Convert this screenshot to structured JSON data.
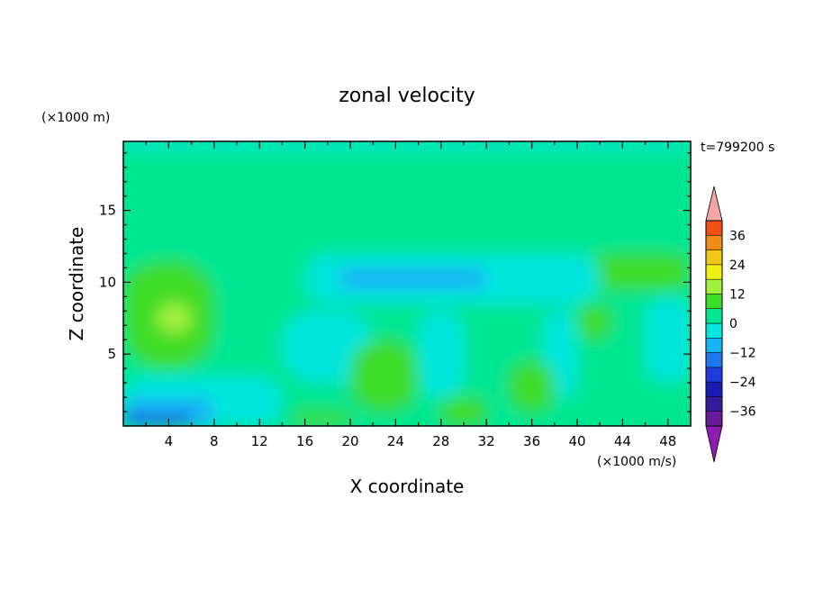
{
  "chart_data": {
    "type": "heatmap",
    "title": "zonal velocity",
    "xlabel": "X coordinate",
    "ylabel": "Z coordinate",
    "x_unit": "(×1000 m/s)",
    "y_unit": "(×1000 m)",
    "time_label": "t=799200 s",
    "xlim": [
      0,
      50
    ],
    "ylim": [
      0,
      19.8
    ],
    "x_ticks": [
      4,
      8,
      12,
      16,
      20,
      24,
      28,
      32,
      36,
      40,
      44,
      48
    ],
    "y_ticks": [
      5,
      10,
      15
    ],
    "colorbar": {
      "ticks": [
        36,
        24,
        12,
        0,
        -12,
        -24,
        -36
      ],
      "levels": [
        -42,
        -36,
        -30,
        -24,
        -18,
        -12,
        -6,
        0,
        6,
        12,
        18,
        24,
        30,
        36,
        42
      ],
      "colors": [
        "#6a1b9a",
        "#3a1a9c",
        "#1c1cb4",
        "#1e3cdc",
        "#1e78f0",
        "#14b4f5",
        "#00e6dc",
        "#00e690",
        "#3cdc28",
        "#a0f03c",
        "#f0f014",
        "#f0c814",
        "#f08c14",
        "#f05014",
        "#e61e1e"
      ],
      "extend_low_color": "#8e1cae",
      "extend_high_color": "#f4a6a6"
    },
    "regions": [
      {
        "x": [
          0,
          50
        ],
        "z": [
          0,
          19.8
        ],
        "value": 2
      },
      {
        "x": [
          0,
          50
        ],
        "z": [
          19.2,
          19.8
        ],
        "value": -4
      },
      {
        "x": [
          0,
          14
        ],
        "z": [
          16.8,
          18.5
        ],
        "value": 4
      },
      {
        "x": [
          28,
          50
        ],
        "z": [
          17.8,
          18.8
        ],
        "value": 4
      },
      {
        "x": [
          16,
          38
        ],
        "z": [
          13,
          16.2
        ],
        "value": 4
      },
      {
        "x": [
          0,
          30
        ],
        "z": [
          13.5,
          15.2
        ],
        "value": 4
      },
      {
        "x": [
          0,
          8
        ],
        "z": [
          4,
          11.5
        ],
        "value": 6
      },
      {
        "x": [
          0,
          5
        ],
        "z": [
          8,
          11
        ],
        "value": 8
      },
      {
        "x": [
          2,
          7
        ],
        "z": [
          6,
          10
        ],
        "value": 10
      },
      {
        "x": [
          3,
          6
        ],
        "z": [
          6.5,
          8.5
        ],
        "value": 14
      },
      {
        "x": [
          41,
          50
        ],
        "z": [
          9.5,
          12
        ],
        "value": 6
      },
      {
        "x": [
          44,
          48
        ],
        "z": [
          10.5,
          11.5
        ],
        "value": 10
      },
      {
        "x": [
          16,
          42
        ],
        "z": [
          8.5,
          12
        ],
        "value": -6
      },
      {
        "x": [
          19,
          32
        ],
        "z": [
          9.5,
          11
        ],
        "value": -10
      },
      {
        "x": [
          0,
          14
        ],
        "z": [
          0,
          3.5
        ],
        "value": -6
      },
      {
        "x": [
          0,
          8
        ],
        "z": [
          0,
          2
        ],
        "value": -12
      },
      {
        "x": [
          0,
          6
        ],
        "z": [
          0,
          0.8
        ],
        "value": -24
      },
      {
        "x": [
          14,
          22
        ],
        "z": [
          3,
          8
        ],
        "value": -6
      },
      {
        "x": [
          26,
          30
        ],
        "z": [
          2,
          8
        ],
        "value": -6
      },
      {
        "x": [
          37,
          40
        ],
        "z": [
          2,
          8
        ],
        "value": -6
      },
      {
        "x": [
          46,
          50
        ],
        "z": [
          3,
          9
        ],
        "value": -6
      },
      {
        "x": [
          20,
          26
        ],
        "z": [
          1,
          6
        ],
        "value": 6
      },
      {
        "x": [
          22,
          24
        ],
        "z": [
          4,
          5.5
        ],
        "value": 10
      },
      {
        "x": [
          28,
          32
        ],
        "z": [
          0,
          2
        ],
        "value": 10
      },
      {
        "x": [
          34,
          38
        ],
        "z": [
          1,
          4.5
        ],
        "value": 6
      },
      {
        "x": [
          40,
          43
        ],
        "z": [
          6,
          8.5
        ],
        "value": 6
      },
      {
        "x": [
          15,
          20
        ],
        "z": [
          0,
          1
        ],
        "value": 6
      }
    ]
  }
}
